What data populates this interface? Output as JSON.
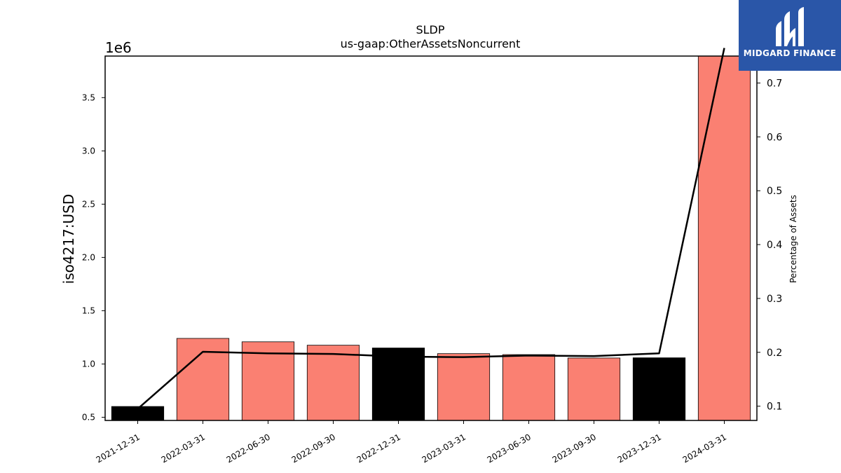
{
  "chart_data": {
    "type": "bar+line",
    "title": "SLDP",
    "subtitle": "us-gaap:OtherAssetsNoncurrent",
    "ylabel": "iso4217:USD",
    "y_offset_label": "1e6",
    "y2label": "Percentage of Assets",
    "categories": [
      "2021-12-31",
      "2022-03-31",
      "2022-06-30",
      "2022-09-30",
      "2022-12-31",
      "2023-03-31",
      "2023-06-30",
      "2023-09-30",
      "2023-12-31",
      "2024-03-31"
    ],
    "bar_values": [
      601000,
      1240000,
      1208000,
      1176000,
      1150000,
      1097000,
      1088000,
      1056000,
      1058000,
      3890000
    ],
    "bar_colors": [
      "#000000",
      "#fa8072",
      "#fa8072",
      "#fa8072",
      "#000000",
      "#fa8072",
      "#fa8072",
      "#fa8072",
      "#000000",
      "#fa8072"
    ],
    "line_values": [
      0.095,
      0.201,
      0.198,
      0.197,
      0.192,
      0.191,
      0.194,
      0.193,
      0.198,
      0.765
    ],
    "line_color": "#000000",
    "ylim": [
      470000,
      3890000
    ],
    "yticks": [
      0.5,
      1.0,
      1.5,
      2.0,
      2.5,
      3.0,
      3.5
    ],
    "ytick_labels": [
      "0.5",
      "1.0",
      "1.5",
      "2.0",
      "2.5",
      "3.0",
      "3.5"
    ],
    "y2lim": [
      0.0735,
      0.75
    ],
    "y2ticks": [
      0.1,
      0.2,
      0.3,
      0.4,
      0.5,
      0.6,
      0.7
    ],
    "y2tick_labels": [
      "0.1",
      "0.2",
      "0.3",
      "0.4",
      "0.5",
      "0.6",
      "0.7"
    ],
    "grid": false
  },
  "logo": {
    "text": "MIDGARD FINANCE",
    "color": "#2a56a8"
  }
}
